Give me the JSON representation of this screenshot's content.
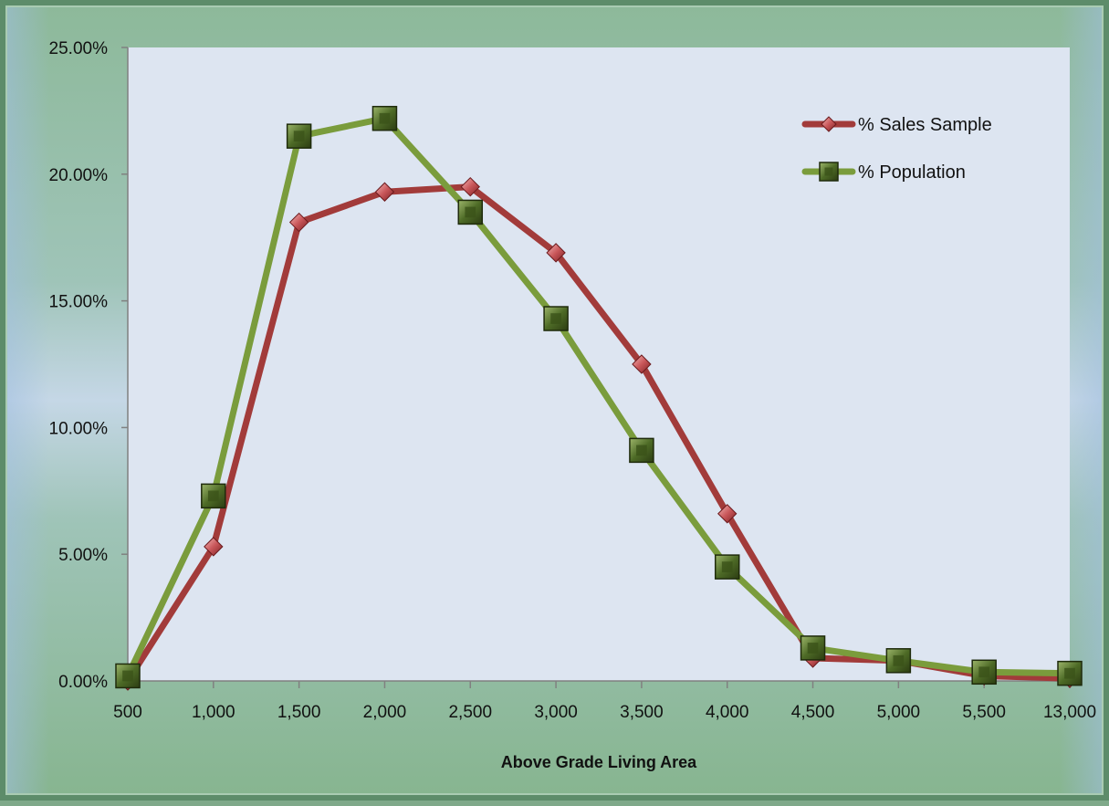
{
  "colors": {
    "plot_bg": "#dde5f1",
    "sales_line": "#a23b3a",
    "sales_marker": "#c9575a",
    "population_line": "#7a9c3c",
    "population_marker": "#4d6a26",
    "axis": "#808080"
  },
  "chart_data": {
    "type": "line",
    "title": "",
    "xlabel": "Above Grade Living Area",
    "ylabel": "",
    "categories": [
      "500",
      "1,000",
      "1,500",
      "2,000",
      "2,500",
      "3,000",
      "3,500",
      "4,000",
      "4,500",
      "5,000",
      "5,500",
      "13,000"
    ],
    "ylim": [
      0,
      25
    ],
    "y_ticks": [
      "0.00%",
      "5.00%",
      "10.00%",
      "15.00%",
      "20.00%",
      "25.00%"
    ],
    "grid": false,
    "legend_position": "top-right",
    "series": [
      {
        "name": "% Sales Sample",
        "marker": "diamond",
        "values": [
          0.0,
          5.3,
          18.1,
          19.3,
          19.5,
          16.9,
          12.5,
          6.6,
          0.9,
          0.8,
          0.2,
          0.1
        ]
      },
      {
        "name": "% Population",
        "marker": "square",
        "values": [
          0.2,
          7.3,
          21.5,
          22.2,
          18.5,
          14.3,
          9.1,
          4.5,
          1.3,
          0.8,
          0.35,
          0.3
        ]
      }
    ]
  }
}
